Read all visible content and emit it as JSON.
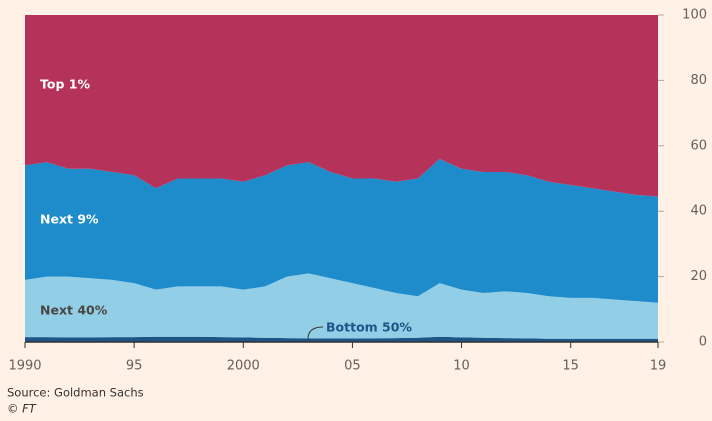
{
  "chart_data": {
    "type": "stacked-area",
    "x": [
      1990,
      1991,
      1992,
      1993,
      1994,
      1995,
      1996,
      1997,
      1998,
      1999,
      2000,
      2001,
      2002,
      2003,
      2004,
      2005,
      2006,
      2007,
      2008,
      2009,
      2010,
      2011,
      2012,
      2013,
      2014,
      2015,
      2016,
      2017,
      2018,
      2019
    ],
    "series": [
      {
        "name": "Bottom 50%",
        "color": "#1d5588",
        "label_color": "#1d5588",
        "values": [
          1.5,
          1.5,
          1.4,
          1.4,
          1.5,
          1.5,
          1.6,
          1.6,
          1.6,
          1.5,
          1.4,
          1.3,
          1.2,
          1.1,
          1.1,
          1.1,
          1.1,
          1.2,
          1.3,
          1.6,
          1.4,
          1.3,
          1.2,
          1.1,
          1.0,
          1.0,
          1.0,
          1.0,
          1.0,
          1.0
        ]
      },
      {
        "name": "Next 40%",
        "color": "#92cfe6",
        "label_color": "#4a4643",
        "values": [
          17.5,
          18.5,
          18.6,
          18.1,
          17.5,
          16.5,
          14.4,
          15.4,
          15.4,
          15.5,
          14.6,
          15.7,
          18.8,
          19.9,
          18.4,
          16.9,
          15.4,
          13.8,
          12.7,
          16.4,
          14.6,
          13.7,
          14.3,
          13.9,
          13.0,
          12.5,
          12.5,
          12.0,
          11.5,
          11.0
        ]
      },
      {
        "name": "Next 9%",
        "color": "#1e8bcb",
        "label_color": "#ffffff",
        "values": [
          35,
          35,
          33,
          33.5,
          33,
          33,
          31,
          33,
          33,
          33,
          33,
          34,
          34,
          34,
          32.5,
          32,
          33.5,
          34,
          36,
          38,
          37,
          37,
          36.5,
          36,
          35,
          34.5,
          33.5,
          33,
          32.5,
          32.5
        ]
      },
      {
        "name": "Top 1%",
        "color": "#b5325a",
        "label_color": "#ffffff",
        "values": [
          46,
          45,
          47,
          47,
          48,
          49,
          53,
          50,
          50,
          50,
          51,
          49,
          46,
          45,
          48,
          50,
          50,
          51,
          50,
          44,
          47,
          48,
          48,
          49,
          51,
          52,
          53,
          54,
          55,
          55.5
        ]
      }
    ],
    "xlim": [
      1990,
      2019
    ],
    "xticks": [
      1990,
      {
        "value": 1995,
        "label": "95"
      },
      2000,
      {
        "value": 2005,
        "label": "05"
      },
      {
        "value": 2010,
        "label": "10"
      },
      {
        "value": 2015,
        "label": "15"
      },
      {
        "value": 2019,
        "label": "19"
      }
    ],
    "ylim": [
      0,
      100
    ],
    "yticks": [
      0,
      20,
      40,
      60,
      80,
      100
    ],
    "y_axis_side": "right",
    "source": "Source: Goldman Sachs",
    "credit": "© FT"
  }
}
